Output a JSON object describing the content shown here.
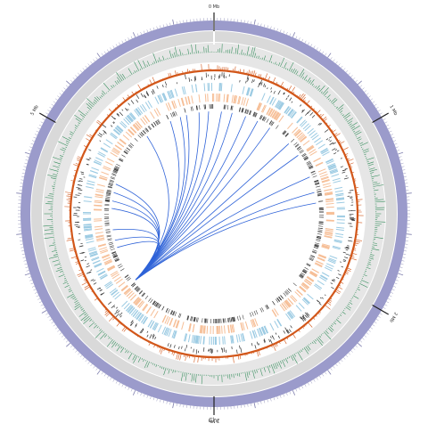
{
  "genome": {
    "length_mb": 6.0,
    "name_label": "Chr",
    "position_labels": [
      {
        "mb": 0,
        "text": "0 Mb"
      },
      {
        "mb": 1,
        "text": "1 Mb"
      },
      {
        "mb": 2,
        "text": "2 Mb"
      },
      {
        "mb": 3,
        "text": "3 Mb"
      },
      {
        "mb": 5,
        "text": "5 Mb"
      }
    ]
  },
  "colors": {
    "chromosome_ring": "#9B9BCB",
    "outer_band": "#D9D9D9",
    "inner_band": "#E6E6E6",
    "gc_skew": "#2E8B57",
    "gc_content": "#D2571A",
    "features_black": "#333333",
    "genes_blue": "#9CCBE3",
    "genes_orange": "#F6BE96",
    "links": "#2F63D8",
    "highlight": "#FFFFFF"
  },
  "hub_mb": 3.83,
  "links_mb": [
    1.4,
    1.3,
    1.15,
    0.92,
    0.78,
    0.55,
    0.42,
    0.3,
    0.17,
    0.07,
    5.95,
    5.86,
    5.74,
    5.68,
    5.58,
    5.32,
    4.78,
    4.7,
    4.62,
    4.55,
    4.35,
    4.25,
    4.18
  ]
}
